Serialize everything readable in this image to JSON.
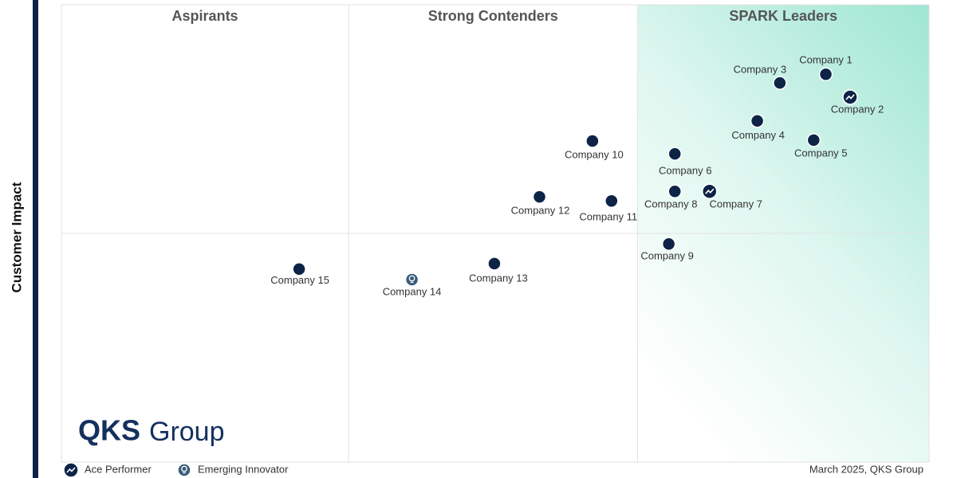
{
  "chart_data": {
    "type": "scatter",
    "ylabel": "Customer Impact",
    "xlim": [
      0,
      100
    ],
    "ylim": [
      0,
      100
    ],
    "xdividers": [
      33.1,
      66.4
    ],
    "ydividers": [
      50
    ],
    "quadrant_labels": [
      "Aspirants",
      "Strong Contenders",
      "SPARK Leaders"
    ],
    "color": "#0d2447",
    "points": [
      {
        "label": "Company 1",
        "x": 88.1,
        "y": 84.8,
        "marker": "default"
      },
      {
        "label": "Company 2",
        "x": 90.9,
        "y": 79.8,
        "marker": "ace"
      },
      {
        "label": "Company 3",
        "x": 82.8,
        "y": 82.9,
        "marker": "default"
      },
      {
        "label": "Company 4",
        "x": 80.2,
        "y": 74.6,
        "marker": "default"
      },
      {
        "label": "Company 5",
        "x": 86.7,
        "y": 70.4,
        "marker": "default"
      },
      {
        "label": "Company 6",
        "x": 70.7,
        "y": 67.4,
        "marker": "default"
      },
      {
        "label": "Company 7",
        "x": 74.7,
        "y": 59.2,
        "marker": "ace"
      },
      {
        "label": "Company 8",
        "x": 70.7,
        "y": 59.2,
        "marker": "default"
      },
      {
        "label": "Company 9",
        "x": 70.0,
        "y": 47.7,
        "marker": "default"
      },
      {
        "label": "Company 10",
        "x": 61.2,
        "y": 70.2,
        "marker": "default"
      },
      {
        "label": "Company 11",
        "x": 63.4,
        "y": 57.1,
        "marker": "default"
      },
      {
        "label": "Company 12",
        "x": 55.1,
        "y": 58.0,
        "marker": "default"
      },
      {
        "label": "Company 13",
        "x": 49.9,
        "y": 43.4,
        "marker": "default"
      },
      {
        "label": "Company 14",
        "x": 40.4,
        "y": 39.9,
        "marker": "innovator"
      },
      {
        "label": "Company 15",
        "x": 27.4,
        "y": 42.2,
        "marker": "default"
      }
    ],
    "legend": [
      {
        "name": "Ace Performer",
        "marker": "ace"
      },
      {
        "name": "Emerging Innovator",
        "marker": "innovator"
      }
    ],
    "note": "March 2025, QKS Group",
    "logo": {
      "bold": "QKS",
      "light": "Group"
    }
  }
}
